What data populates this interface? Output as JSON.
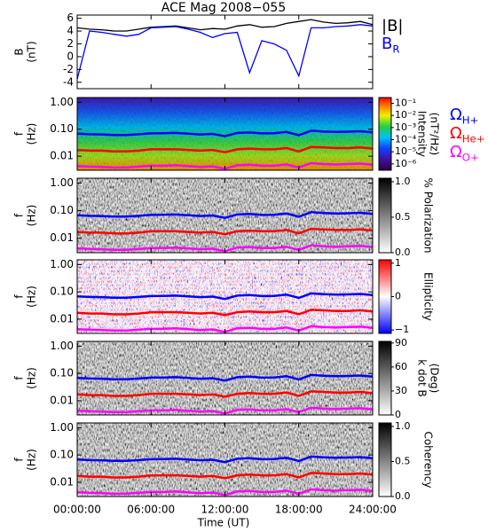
{
  "title": "ACE Mag 2008−055",
  "x_label": "Time (UT)",
  "x": [
    0,
    1,
    2,
    3,
    4,
    5,
    6,
    7,
    8,
    9,
    10,
    11,
    12,
    13,
    14,
    15,
    16,
    17,
    18,
    19,
    20,
    21,
    22,
    23,
    24
  ],
  "xlim": [
    0,
    24
  ],
  "xticks": [
    {
      "value": 0,
      "label": "00:00:00"
    },
    {
      "value": 6,
      "label": "06:00:00"
    },
    {
      "value": 12,
      "label": "12:00:00"
    },
    {
      "value": 18,
      "label": "18:00:00"
    },
    {
      "value": 24,
      "label": "24:00:00"
    }
  ],
  "gyrofrequency": [
    {
      "name": "Ω",
      "subscript": "H+",
      "color": "#0000ff",
      "values": [
        0.068,
        0.065,
        0.064,
        0.061,
        0.061,
        0.065,
        0.07,
        0.071,
        0.073,
        0.068,
        0.064,
        0.067,
        0.055,
        0.073,
        0.076,
        0.07,
        0.071,
        0.079,
        0.06,
        0.088,
        0.082,
        0.079,
        0.081,
        0.084,
        0.076
      ]
    },
    {
      "name": "Ω",
      "subscript": "He+",
      "color": "#ff0000",
      "values": [
        0.017,
        0.016,
        0.016,
        0.015,
        0.015,
        0.016,
        0.018,
        0.018,
        0.018,
        0.017,
        0.016,
        0.017,
        0.014,
        0.018,
        0.019,
        0.018,
        0.018,
        0.02,
        0.015,
        0.022,
        0.021,
        0.02,
        0.02,
        0.021,
        0.019
      ]
    },
    {
      "name": "Ω",
      "subscript": "O+",
      "color": "#ff00ff",
      "values": [
        0.0043,
        0.0041,
        0.004,
        0.0038,
        0.0038,
        0.0041,
        0.0044,
        0.0044,
        0.0046,
        0.0043,
        0.004,
        0.0042,
        0.0034,
        0.0046,
        0.0048,
        0.0044,
        0.0044,
        0.0049,
        0.0038,
        0.0055,
        0.0051,
        0.0049,
        0.0051,
        0.0053,
        0.0048
      ]
    }
  ],
  "chart_data": [
    {
      "type": "line",
      "ylabel": "B",
      "yunit": "(nT)",
      "ylim": [
        -5,
        6.5
      ],
      "yticks": [
        -4,
        -2,
        0,
        2,
        4,
        6
      ],
      "series": [
        {
          "name": "|B|",
          "color": "#000000",
          "values": [
            4.5,
            4.3,
            4.2,
            4.0,
            4.0,
            4.3,
            4.6,
            4.7,
            4.8,
            4.5,
            4.2,
            4.4,
            4.3,
            4.8,
            5.0,
            4.6,
            4.7,
            5.2,
            5.5,
            5.8,
            5.4,
            5.2,
            5.3,
            5.5,
            5.0
          ]
        },
        {
          "name": "B",
          "subscript": "R",
          "color": "#0000ff",
          "values": [
            -3.5,
            4.0,
            3.8,
            3.5,
            3.2,
            3.5,
            4.5,
            4.6,
            4.7,
            4.3,
            3.8,
            3.0,
            3.6,
            3.8,
            -2.5,
            2.5,
            2.0,
            1.0,
            -3.0,
            4.5,
            4.5,
            4.7,
            4.8,
            5.0,
            4.8
          ]
        }
      ]
    },
    {
      "type": "spectrogram",
      "ylabel": "f",
      "yunit": "(Hz)",
      "log_y": true,
      "ylim": [
        0.003,
        1.5
      ],
      "yticks": [
        {
          "value": 1,
          "label": "1.00"
        },
        {
          "value": 0.1,
          "label": "0.10"
        },
        {
          "value": 0.01,
          "label": "0.01"
        }
      ],
      "legend": true,
      "colorbar": {
        "label": "Intensity",
        "unit": "(nT²/Hz)",
        "colormap": "rainbow",
        "log": true,
        "lim": [
          3e-07,
          0.3
        ],
        "ticks": [
          {
            "value": 0.1,
            "label": "10⁻¹"
          },
          {
            "value": 0.01,
            "label": "10⁻²"
          },
          {
            "value": 0.001,
            "label": "10⁻³"
          },
          {
            "value": 0.0001,
            "label": "10⁻⁴"
          },
          {
            "value": 1e-05,
            "label": "10⁻⁵"
          },
          {
            "value": 1e-06,
            "label": "10⁻⁶"
          }
        ]
      }
    },
    {
      "type": "spectrogram",
      "ylabel": "f",
      "yunit": "(Hz)",
      "log_y": true,
      "ylim": [
        0.003,
        1.5
      ],
      "yticks": [
        {
          "value": 1,
          "label": "1.00"
        },
        {
          "value": 0.1,
          "label": "0.10"
        },
        {
          "value": 0.01,
          "label": "0.01"
        }
      ],
      "colorbar": {
        "label": "% Polarization",
        "colormap": "gray",
        "lim": [
          0,
          1.05
        ],
        "ticks": [
          {
            "value": 0,
            "label": "0.0"
          },
          {
            "value": 0.5,
            "label": "0.5"
          },
          {
            "value": 1,
            "label": "1.0"
          }
        ]
      }
    },
    {
      "type": "spectrogram",
      "ylabel": "f",
      "yunit": "(Hz)",
      "log_y": true,
      "ylim": [
        0.003,
        1.5
      ],
      "yticks": [
        {
          "value": 1,
          "label": "1.00"
        },
        {
          "value": 0.1,
          "label": "0.10"
        },
        {
          "value": 0.01,
          "label": "0.01"
        }
      ],
      "colorbar": {
        "label": "Ellipticity",
        "colormap": "redblue",
        "lim": [
          -1.1,
          1.1
        ],
        "ticks": [
          {
            "value": 1,
            "label": "1"
          },
          {
            "value": 0,
            "label": "0"
          },
          {
            "value": -1,
            "label": "−1"
          }
        ]
      }
    },
    {
      "type": "spectrogram",
      "ylabel": "f",
      "yunit": "(Hz)",
      "log_y": true,
      "ylim": [
        0.003,
        1.5
      ],
      "yticks": [
        {
          "value": 1,
          "label": "1.00"
        },
        {
          "value": 0.1,
          "label": "0.10"
        },
        {
          "value": 0.01,
          "label": "0.01"
        }
      ],
      "colorbar": {
        "label": "k dot B",
        "unit": "(Deg)",
        "colormap": "gray",
        "lim": [
          0,
          92
        ],
        "ticks": [
          0,
          30,
          60,
          90
        ]
      }
    },
    {
      "type": "spectrogram",
      "ylabel": "f",
      "yunit": "(Hz)",
      "log_y": true,
      "ylim": [
        0.003,
        1.5
      ],
      "yticks": [
        {
          "value": 1,
          "label": "1.00"
        },
        {
          "value": 0.1,
          "label": "0.10"
        },
        {
          "value": 0.01,
          "label": "0.01"
        }
      ],
      "colorbar": {
        "label": "Coherency",
        "colormap": "gray",
        "lim": [
          0,
          1.05
        ],
        "ticks": [
          {
            "value": 0,
            "label": "0.0"
          },
          {
            "value": 0.5,
            "label": "0.5"
          },
          {
            "value": 1,
            "label": "1.0"
          }
        ]
      }
    }
  ]
}
